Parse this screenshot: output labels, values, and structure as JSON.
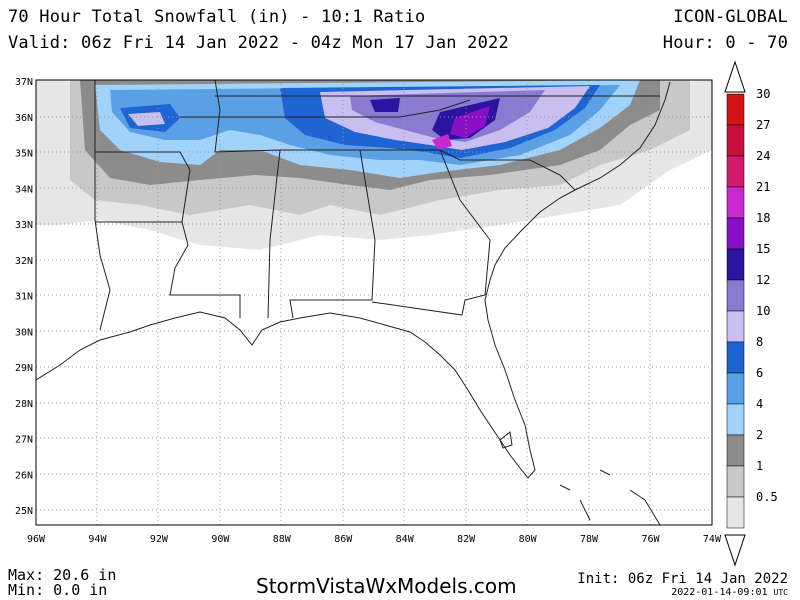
{
  "header": {
    "title": "70 Hour Total Snowfall (in) - 10:1 Ratio",
    "valid": "Valid: 06z Fri 14 Jan 2022 - 04z Mon 17 Jan 2022",
    "model": "ICON-GLOBAL",
    "hour": "Hour: 0 - 70"
  },
  "axes": {
    "lat_labels": [
      "37N",
      "36N",
      "35N",
      "34N",
      "33N",
      "32N",
      "31N",
      "30N",
      "29N",
      "28N",
      "27N",
      "26N",
      "25N"
    ],
    "lon_labels": [
      "96W",
      "94W",
      "92W",
      "90W",
      "88W",
      "86W",
      "84W",
      "82W",
      "80W",
      "78W",
      "76W",
      "74W"
    ]
  },
  "legend": {
    "levels": [
      {
        "label": "30",
        "color": "#d21414"
      },
      {
        "label": "27",
        "color": "#c8103c"
      },
      {
        "label": "24",
        "color": "#d21a6e"
      },
      {
        "label": "21",
        "color": "#c82ad0"
      },
      {
        "label": "18",
        "color": "#8a10c8"
      },
      {
        "label": "15",
        "color": "#2a14a0"
      },
      {
        "label": "12",
        "color": "#8a7ad2"
      },
      {
        "label": "10",
        "color": "#c8bef0"
      },
      {
        "label": "8",
        "color": "#1e64d2"
      },
      {
        "label": "6",
        "color": "#5aa0e6"
      },
      {
        "label": "4",
        "color": "#a0d2fa"
      },
      {
        "label": "2",
        "color": "#8c8c8c"
      },
      {
        "label": "1",
        "color": "#c8c8c8"
      },
      {
        "label": "0.5",
        "color": "#e6e6e6"
      }
    ]
  },
  "footer": {
    "max": "Max: 20.6 in",
    "min": "Min: 0.0 in",
    "site": "StormVistaWxModels.com",
    "init": "Init: 06z Fri 14 Jan 2022",
    "generated": "2022-01-14-09:01",
    "generated_unit": "UTC"
  }
}
